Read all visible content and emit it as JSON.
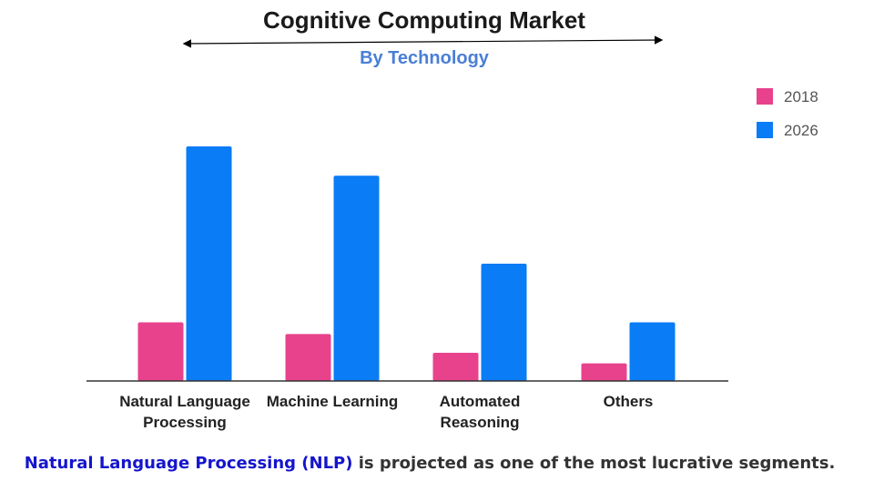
{
  "chart_data": {
    "type": "bar",
    "title": "Cognitive Computing Market",
    "subtitle": "By Technology",
    "categories": [
      [
        "Natural Language",
        "Processing"
      ],
      [
        "Machine Learning"
      ],
      [
        "Automated",
        "Reasoning"
      ],
      [
        "Others"
      ]
    ],
    "series": [
      {
        "name": "2018",
        "color": "#e8428c",
        "values": [
          25,
          20,
          12,
          7.5
        ]
      },
      {
        "name": "2026",
        "color": "#0a7cf5",
        "values": [
          100,
          87.5,
          50,
          25
        ]
      }
    ],
    "ylim": [
      0,
      100
    ],
    "grid": false,
    "legend_position": "top-right"
  },
  "footer": {
    "highlight": "Natural Language Processing (NLP)",
    "rest": " is projected as one of the most lucrative segments."
  }
}
